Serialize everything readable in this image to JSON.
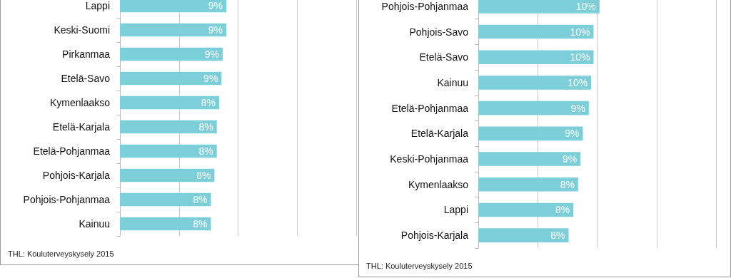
{
  "chart_data": [
    {
      "type": "bar",
      "orientation": "horizontal",
      "categories": [
        "Lappi",
        "Keski-Suomi",
        "Pirkanmaa",
        "Etelä-Savo",
        "Kymenlaakso",
        "Etelä-Karjala",
        "Etelä-Pohjanmaa",
        "Pohjois-Karjala",
        "Pohjois-Pohjanmaa",
        "Kainuu"
      ],
      "values": [
        9.0,
        9.0,
        8.7,
        8.6,
        8.4,
        8.2,
        8.2,
        8.0,
        7.7,
        7.7
      ],
      "value_labels": [
        "9%",
        "9%",
        "9%",
        "9%",
        "8%",
        "8%",
        "8%",
        "8%",
        "8%",
        "8%"
      ],
      "color": "#7ccfd8",
      "xlim": [
        0,
        20
      ],
      "xticks": [
        {
          "value": 0,
          "label": null
        },
        {
          "value": 5,
          "label": null
        },
        {
          "value": 10,
          "label": null
        },
        {
          "value": 15,
          "label": null
        },
        {
          "value": 20,
          "label": null
        }
      ],
      "tick_labels": false,
      "grid": "x",
      "annotations": [
        "THL: Kouluterveyskysely 2015"
      ]
    },
    {
      "type": "bar",
      "orientation": "horizontal",
      "categories": [
        "Pohjois-Pohjanmaa",
        "Pohjois-Savo",
        "Etelä-Savo",
        "Kainuu",
        "Etelä-Pohjanmaa",
        "Etelä-Karjala",
        "Keski-Pohjanmaa",
        "Kymenlaakso",
        "Lappi",
        "Pohjois-Karjala"
      ],
      "values": [
        10.2,
        9.7,
        9.7,
        9.5,
        9.3,
        8.8,
        8.6,
        8.4,
        8.0,
        7.6
      ],
      "value_labels": [
        "10%",
        "10%",
        "10%",
        "10%",
        "9%",
        "9%",
        "9%",
        "8%",
        "8%",
        "8%"
      ],
      "color": "#7ccfd8",
      "xlim": [
        0,
        20
      ],
      "xticks": [
        {
          "value": 0,
          "label": null
        },
        {
          "value": 5,
          "label": null
        },
        {
          "value": 10,
          "label": null
        },
        {
          "value": 15,
          "label": null
        },
        {
          "value": 20,
          "label": null
        }
      ],
      "tick_labels": false,
      "grid": "x",
      "annotations": [
        "THL: Kouluterveyskysely 2015"
      ]
    }
  ]
}
